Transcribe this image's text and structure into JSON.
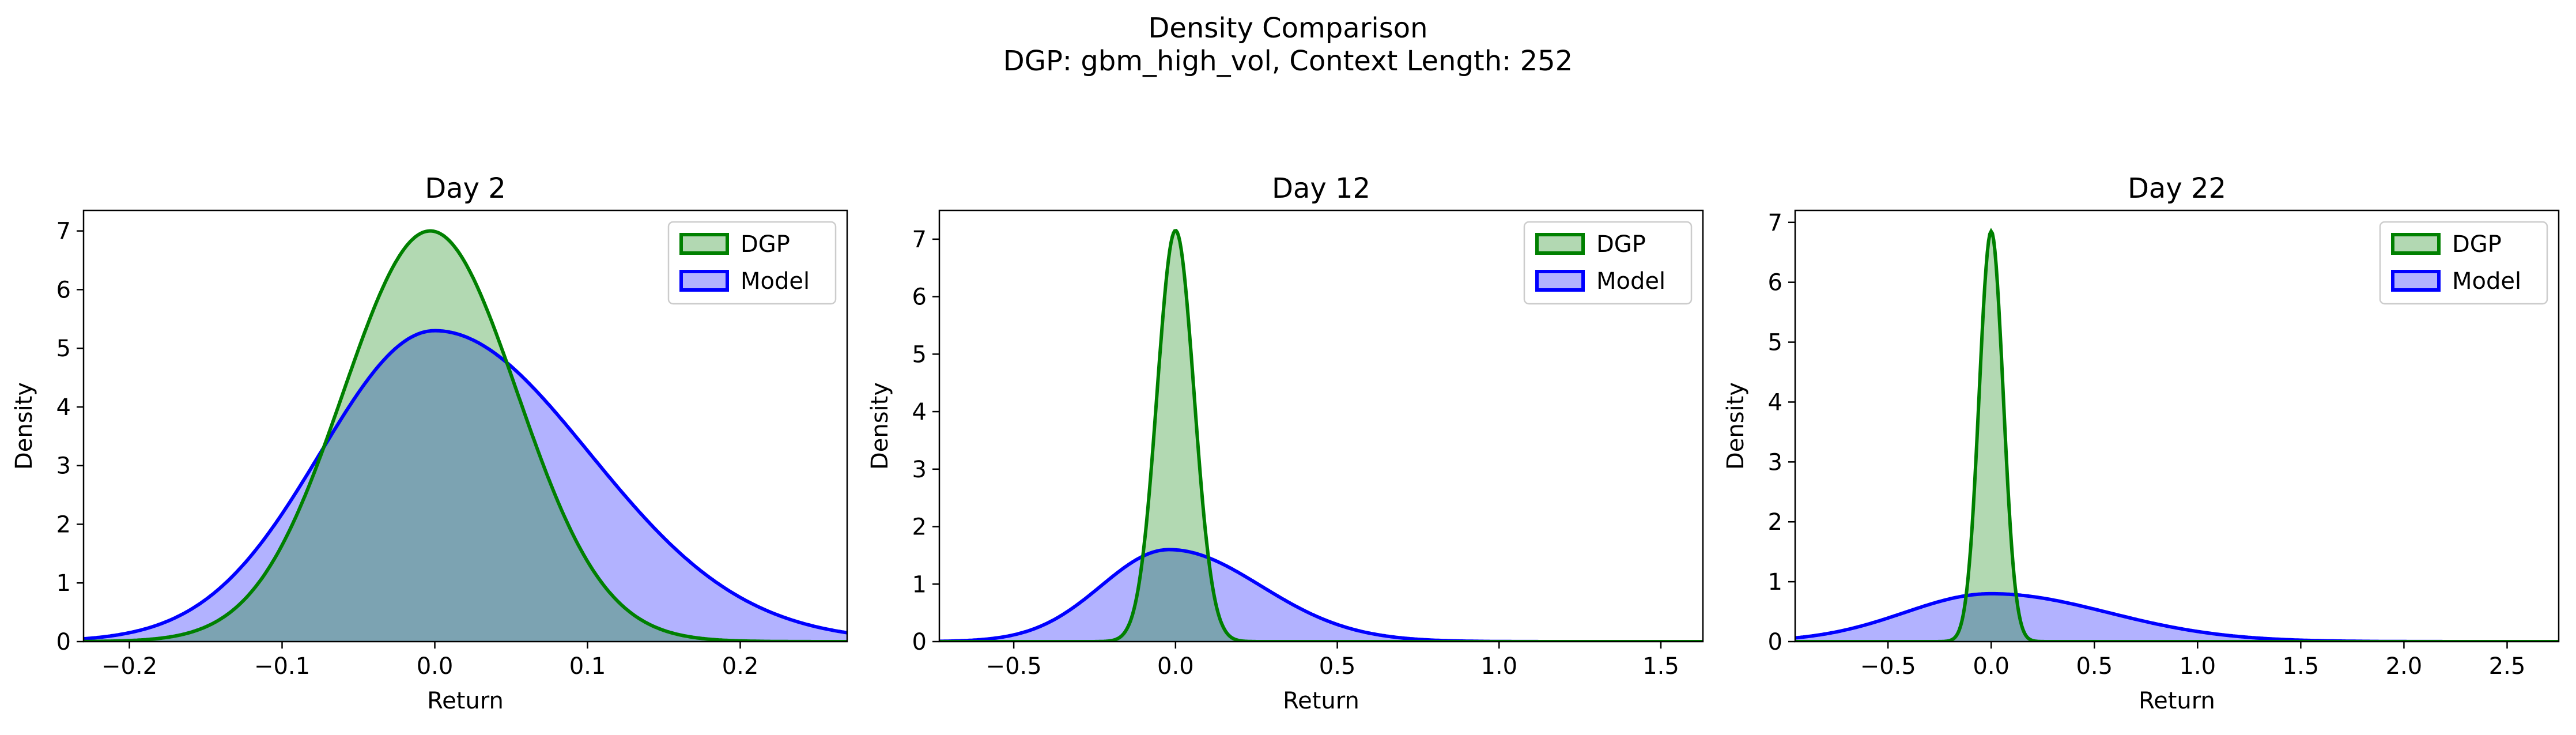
{
  "figure": {
    "title": "Density Comparison",
    "subtitle": "DGP: gbm_high_vol, Context Length: 252"
  },
  "colors": {
    "dgp_line": "#008000",
    "dgp_fill": "#b2d8b2",
    "model_line": "#0000ff",
    "model_fill": "#b2b2ff",
    "overlap_fill": "#7f99cc"
  },
  "chart_data": [
    {
      "type": "area",
      "title": "Day 2",
      "xlabel": "Return",
      "ylabel": "Density",
      "xlim": [
        -0.23,
        0.27
      ],
      "ylim": [
        0,
        7.35
      ],
      "xticks": [
        -0.2,
        -0.1,
        0.0,
        0.1,
        0.2
      ],
      "xtick_labels": [
        "−0.2",
        "−0.1",
        "0.0",
        "0.1",
        "0.2"
      ],
      "yticks": [
        0,
        1,
        2,
        3,
        4,
        5,
        6,
        7
      ],
      "legend": "top-right",
      "grid": false,
      "series": [
        {
          "name": "DGP",
          "mean": -0.003,
          "std": 0.057,
          "peak": 7.0
        },
        {
          "name": "Model",
          "mean": 0.0,
          "std": 0.075,
          "peak": 5.3
        }
      ]
    },
    {
      "type": "area",
      "title": "Day 12",
      "xlabel": "Return",
      "ylabel": "Density",
      "xlim": [
        -0.73,
        1.63
      ],
      "ylim": [
        0,
        7.5
      ],
      "xticks": [
        -0.5,
        0.0,
        0.5,
        1.0,
        1.5
      ],
      "xtick_labels": [
        "−0.5",
        "0.0",
        "0.5",
        "1.0",
        "1.5"
      ],
      "yticks": [
        0,
        1,
        2,
        3,
        4,
        5,
        6,
        7
      ],
      "legend": "top-right",
      "grid": false,
      "series": [
        {
          "name": "DGP",
          "mean": 0.0,
          "std": 0.057,
          "peak": 7.15
        },
        {
          "name": "Model",
          "mean": -0.02,
          "std": 0.21,
          "peak": 1.6
        }
      ]
    },
    {
      "type": "area",
      "title": "Day 22",
      "xlabel": "Return",
      "ylabel": "Density",
      "xlim": [
        -0.95,
        2.75
      ],
      "ylim": [
        0,
        7.2
      ],
      "xticks": [
        -0.5,
        0.0,
        0.5,
        1.0,
        1.5,
        2.0,
        2.5
      ],
      "xtick_labels": [
        "−0.5",
        "0.0",
        "0.5",
        "1.0",
        "1.5",
        "2.0",
        "2.5"
      ],
      "yticks": [
        0,
        1,
        2,
        3,
        4,
        5,
        6,
        7
      ],
      "legend": "top-right",
      "grid": false,
      "series": [
        {
          "name": "DGP",
          "mean": 0.0,
          "std": 0.058,
          "peak": 6.85
        },
        {
          "name": "Model",
          "mean": 0.0,
          "std": 0.42,
          "peak": 0.8
        }
      ]
    }
  ]
}
